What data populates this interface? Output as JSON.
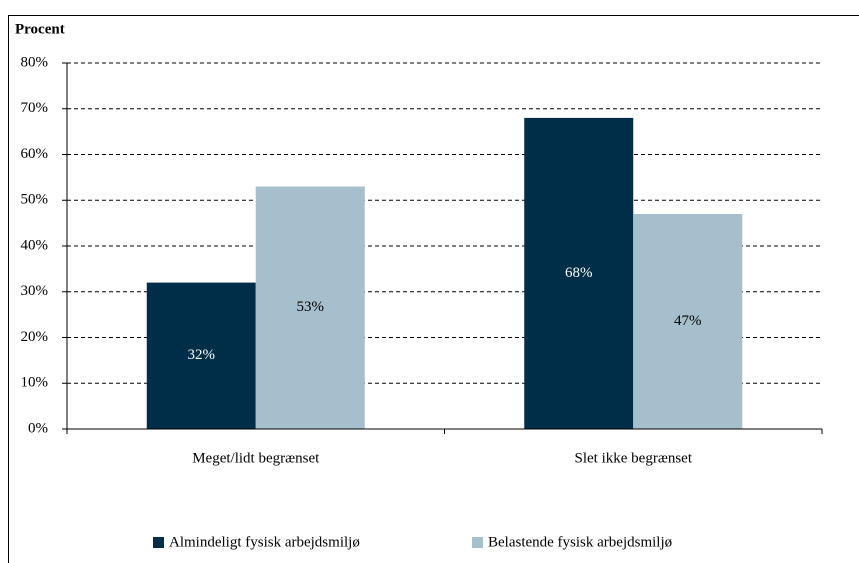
{
  "chart_data": {
    "type": "bar",
    "y_label": "Procent",
    "categories": [
      "Meget/lidt begrænset",
      "Slet ikke begrænset"
    ],
    "series": [
      {
        "name": "Almindeligt fysisk arbejdsmiljø",
        "color": "#002e48",
        "values": [
          32,
          68
        ],
        "value_labels": [
          "32%",
          "68%"
        ]
      },
      {
        "name": "Belastende fysisk arbejdsmiljø",
        "color": "#a6bfcc",
        "values": [
          53,
          47
        ],
        "value_labels": [
          "53%",
          "47%"
        ]
      }
    ],
    "ylim": [
      0,
      80
    ],
    "yticks": [
      {
        "value": 0,
        "label": "0%"
      },
      {
        "value": 10,
        "label": "10%"
      },
      {
        "value": 20,
        "label": "20%"
      },
      {
        "value": 30,
        "label": "30%"
      },
      {
        "value": 40,
        "label": "40%"
      },
      {
        "value": 50,
        "label": "50%"
      },
      {
        "value": 60,
        "label": "60%"
      },
      {
        "value": 70,
        "label": "70%"
      },
      {
        "value": 80,
        "label": "80%"
      }
    ],
    "grid": true,
    "legend": "bottom"
  }
}
